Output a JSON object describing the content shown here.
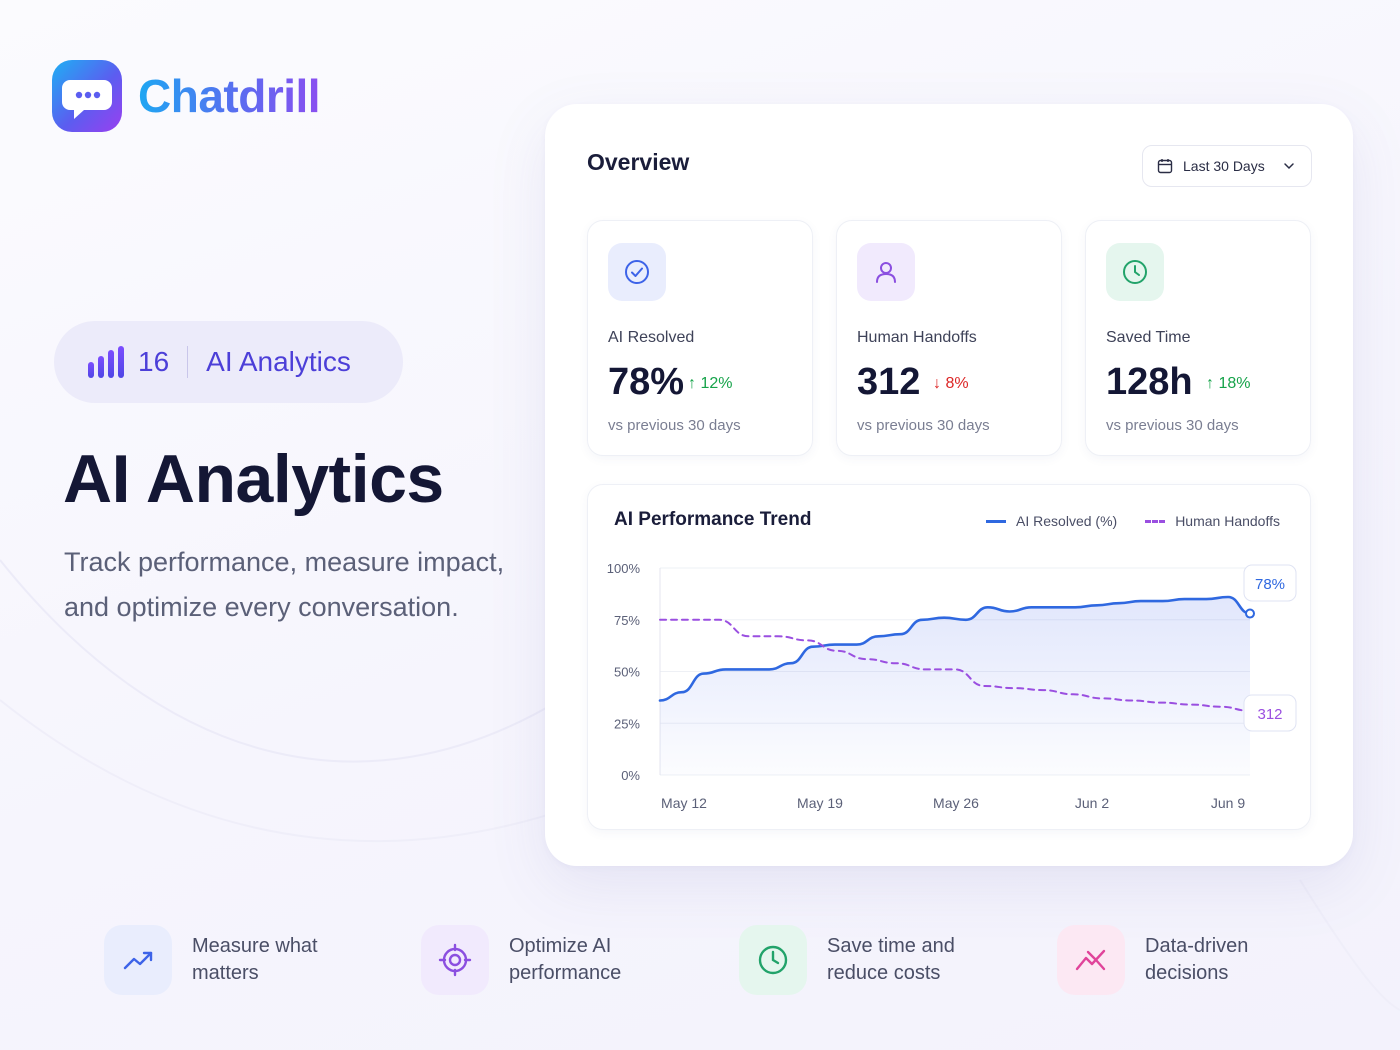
{
  "brand": {
    "name": "Chatdrill",
    "logo_icon": "chat-bubble-icon"
  },
  "badge": {
    "number": "16",
    "label": "AI Analytics",
    "icon": "bar-chart-icon"
  },
  "hero": {
    "title": "AI Analytics",
    "subtitle": "Track performance, measure impact, and optimize every conversation."
  },
  "overview": {
    "title": "Overview",
    "date_range": {
      "label": "Last 30 Days",
      "icon": "calendar-icon",
      "options": [
        "Last 30 Days"
      ]
    },
    "stats": [
      {
        "label": "AI Resolved",
        "value": "78%",
        "delta": "12%",
        "direction": "up",
        "foot": "vs previous 30 days",
        "icon": "check-circle-icon",
        "accent": "#3d63e8",
        "bg": "#e9edfd"
      },
      {
        "label": "Human Handoffs",
        "value": "312",
        "delta": "8%",
        "direction": "down",
        "foot": "vs previous 30 days",
        "icon": "user-icon",
        "accent": "#8b4fe0",
        "bg": "#f1eafd"
      },
      {
        "label": "Saved Time",
        "value": "128h",
        "delta": "18%",
        "direction": "up",
        "foot": "vs previous 30 days",
        "icon": "clock-icon",
        "accent": "#22a36a",
        "bg": "#e5f6ee"
      }
    ]
  },
  "chart_data": {
    "type": "line",
    "title": "AI Performance Trend",
    "x_ticks": [
      "May 12",
      "May 19",
      "May 26",
      "Jun 2",
      "Jun 9"
    ],
    "y_ticks": [
      "100%",
      "75%",
      "50%",
      "25%",
      "0%"
    ],
    "ylim": [
      0,
      100
    ],
    "grid": true,
    "legend_position": "top-right",
    "series": [
      {
        "name": "AI Resolved (%)",
        "style": "solid",
        "color": "#2f68e0",
        "values": [
          36,
          40,
          49,
          51,
          51,
          51,
          54,
          62,
          63,
          63,
          67,
          68,
          75,
          76,
          75,
          81,
          79,
          81,
          81,
          81,
          82,
          83,
          84,
          84,
          85,
          85,
          86,
          78
        ],
        "end_label": "78%"
      },
      {
        "name": "Human Handoffs",
        "style": "dashed",
        "color": "#9a4fe0",
        "values": [
          75,
          75,
          75,
          67,
          67,
          65,
          60,
          56,
          54,
          51,
          51,
          43,
          42,
          41,
          39,
          37,
          36,
          35,
          34,
          33,
          31
        ],
        "end_label": "312"
      }
    ]
  },
  "features": [
    {
      "text": "Measure what matters",
      "icon": "trending-up-icon",
      "accent": "#3d63e8",
      "bg": "#e9edfd"
    },
    {
      "text": "Optimize AI performance",
      "icon": "target-icon",
      "accent": "#8b4fe0",
      "bg": "#f1eafd"
    },
    {
      "text": "Save time and reduce costs",
      "icon": "clock-icon",
      "accent": "#22a36a",
      "bg": "#e5f6ee"
    },
    {
      "text": "Data-driven decisions",
      "icon": "chart-down-icon",
      "accent": "#e0449a",
      "bg": "#fce8f3"
    }
  ]
}
